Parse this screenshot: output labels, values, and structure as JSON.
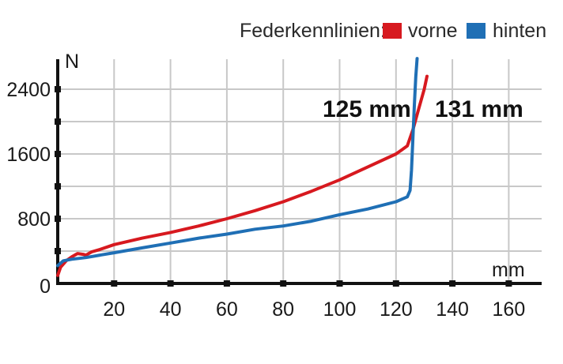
{
  "chart_data": {
    "type": "line",
    "title": "Federkennlinien",
    "xlabel": "mm",
    "ylabel": "N",
    "xlim": [
      0,
      172
    ],
    "ylim": [
      0,
      2780
    ],
    "x_ticks": [
      20,
      40,
      60,
      80,
      100,
      120,
      140,
      160
    ],
    "y_ticks": [
      0,
      800,
      1600,
      2400
    ],
    "y_minor_ticks": [
      400,
      1200,
      2000
    ],
    "grid": true,
    "legend": {
      "label": "Federkennlinien:",
      "position": "top-right",
      "entries": [
        {
          "name": "vorne",
          "color": "#d7191f"
        },
        {
          "name": "hinten",
          "color": "#1f6fb5"
        }
      ]
    },
    "annotations": [
      {
        "text": "125 mm",
        "near_series": "hinten"
      },
      {
        "text": "131 mm",
        "near_series": "vorne"
      }
    ],
    "series": [
      {
        "name": "vorne",
        "color": "#d7191f",
        "x": [
          0,
          1,
          3,
          5,
          7,
          9,
          10,
          12,
          15,
          20,
          30,
          40,
          50,
          60,
          70,
          80,
          90,
          100,
          110,
          120,
          124,
          126,
          128,
          130,
          131
        ],
        "y": [
          100,
          200,
          280,
          330,
          370,
          360,
          350,
          390,
          420,
          480,
          560,
          630,
          710,
          800,
          900,
          1010,
          1140,
          1280,
          1440,
          1600,
          1700,
          1900,
          2150,
          2400,
          2560
        ]
      },
      {
        "name": "hinten",
        "color": "#1f6fb5",
        "x": [
          0,
          2,
          5,
          10,
          15,
          20,
          30,
          40,
          50,
          60,
          70,
          80,
          90,
          100,
          110,
          120,
          124,
          125,
          125.5,
          126,
          126.5,
          127,
          127.5
        ],
        "y": [
          220,
          280,
          300,
          320,
          350,
          380,
          440,
          500,
          560,
          610,
          670,
          710,
          770,
          850,
          920,
          1010,
          1070,
          1150,
          1400,
          1800,
          2200,
          2550,
          2780
        ]
      }
    ]
  },
  "legend": {
    "label": "Federkennlinien:",
    "front": "vorne",
    "rear": "hinten"
  },
  "axes": {
    "y_unit": "N",
    "x_unit": "mm",
    "y_labels": [
      "0",
      "800",
      "1600",
      "2400"
    ],
    "x_labels": [
      "20",
      "40",
      "60",
      "80",
      "100",
      "120",
      "140",
      "160"
    ]
  },
  "annotations": {
    "rear_travel": "125 mm",
    "front_travel": "131 mm"
  }
}
